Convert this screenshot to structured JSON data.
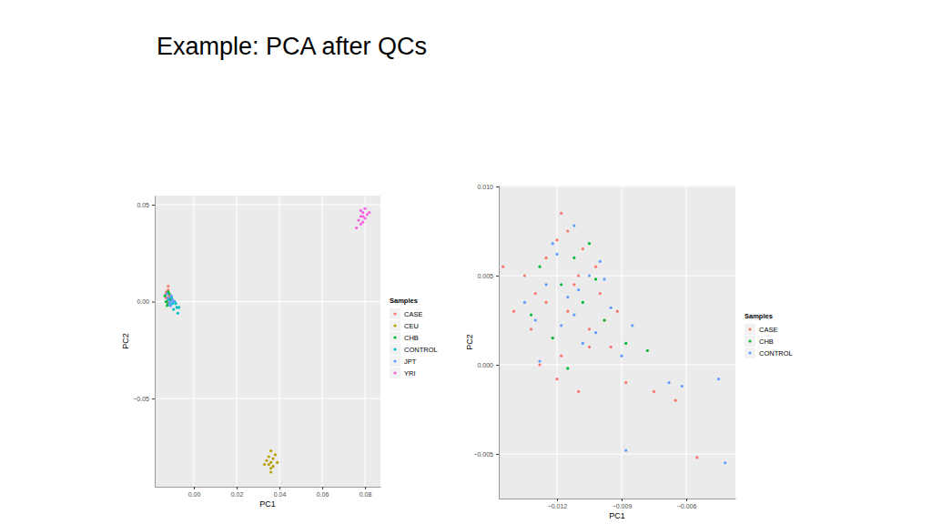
{
  "title": "Example: PCA after QCs",
  "chart_data": [
    {
      "type": "scatter",
      "x_label": "PC1",
      "y_label": "PC2",
      "legend_title": "Samples",
      "legend": "right",
      "grid": true,
      "marker": "circle",
      "xlim": [
        -0.0183,
        0.0872
      ],
      "ylim": [
        -0.0955,
        0.0547
      ],
      "xticks": [
        {
          "value": 0,
          "label": "0.00"
        },
        {
          "value": 0.02,
          "label": "0.02"
        },
        {
          "value": 0.04,
          "label": "0.04"
        },
        {
          "value": 0.06,
          "label": "0.06"
        },
        {
          "value": 0.08,
          "label": "0.08"
        }
      ],
      "yticks": [
        {
          "value": -0.05,
          "label": "−0.05"
        },
        {
          "value": 0,
          "label": "0.00"
        },
        {
          "value": 0.05,
          "label": "0.05"
        }
      ],
      "series": [
        {
          "name": "CASE",
          "color": "#F8766D",
          "x": [
            -0.013,
            -0.012,
            -0.011,
            -0.0125,
            -0.0115,
            -0.013,
            -0.012,
            -0.0105,
            -0.0118,
            -0.0128
          ],
          "values": [
            0.004,
            0.006,
            0.002,
            0.0,
            0.003,
            0.002,
            0.008,
            0.001,
            -0.001,
            0.005
          ]
        },
        {
          "name": "CEU",
          "color": "#B79F00",
          "x": [
            0.035,
            0.036,
            0.037,
            0.034,
            0.038,
            0.036,
            0.035,
            0.037,
            0.036,
            0.033,
            0.039,
            0.036
          ],
          "values": [
            -0.08,
            -0.083,
            -0.085,
            -0.082,
            -0.079,
            -0.088,
            -0.084,
            -0.081,
            -0.086,
            -0.084,
            -0.083,
            -0.077
          ]
        },
        {
          "name": "CHB",
          "color": "#00BA38",
          "x": [
            -0.0135,
            -0.012,
            -0.011,
            -0.0125,
            -0.0105,
            -0.013,
            -0.0115,
            -0.012
          ],
          "values": [
            0.003,
            0.005,
            0.001,
            -0.002,
            0.002,
            0.0,
            0.004,
            -0.001
          ]
        },
        {
          "name": "CONTROL",
          "color": "#00BFC4",
          "x": [
            -0.01,
            -0.009,
            -0.008,
            -0.0095,
            -0.011,
            -0.0085,
            -0.0075,
            -0.012,
            -0.007,
            -0.0105
          ],
          "values": [
            -0.001,
            0.0,
            -0.003,
            -0.004,
            -0.002,
            -0.001,
            -0.006,
            0.001,
            -0.003,
            0.002
          ]
        },
        {
          "name": "JPT",
          "color": "#619CFF",
          "x": [
            -0.012,
            -0.011,
            -0.0105,
            -0.0115,
            -0.01,
            -0.0125,
            -0.011,
            -0.0095
          ],
          "values": [
            0.002,
            0.0,
            0.003,
            -0.001,
            0.001,
            0.004,
            -0.002,
            0.0
          ]
        },
        {
          "name": "YRI",
          "color": "#F564E3",
          "x": [
            0.078,
            0.079,
            0.08,
            0.077,
            0.081,
            0.079,
            0.078,
            0.08,
            0.076,
            0.079,
            0.082,
            0.078
          ],
          "values": [
            0.044,
            0.046,
            0.043,
            0.042,
            0.045,
            0.041,
            0.047,
            0.048,
            0.038,
            0.044,
            0.046,
            0.04
          ]
        }
      ]
    },
    {
      "type": "scatter",
      "x_label": "PC1",
      "y_label": "PC2",
      "legend_title": "Samples",
      "legend": "right",
      "grid": true,
      "marker": "circle",
      "xlim": [
        -0.0147,
        -0.00372
      ],
      "ylim": [
        -0.0075,
        0.01005
      ],
      "xticks": [
        {
          "value": -0.012,
          "label": "−0.012"
        },
        {
          "value": -0.009,
          "label": "−0.009"
        },
        {
          "value": -0.006,
          "label": "−0.006"
        }
      ],
      "yticks": [
        {
          "value": -0.005,
          "label": "−0.005"
        },
        {
          "value": 0,
          "label": "0.000"
        },
        {
          "value": 0.005,
          "label": "0.005"
        },
        {
          "value": 0.01,
          "label": "0.010"
        }
      ],
      "series": [
        {
          "name": "CASE",
          "color": "#F8766D",
          "x": [
            -0.0135,
            -0.013,
            -0.0125,
            -0.012,
            -0.0115,
            -0.011,
            -0.0105,
            -0.01,
            -0.0095,
            -0.014,
            -0.0128,
            -0.0118,
            -0.0108,
            -0.0098,
            -0.0122,
            -0.0112,
            -0.0102,
            -0.0132,
            -0.0092,
            -0.0088,
            -0.0125,
            -0.0115,
            -0.0105,
            -0.012,
            -0.011,
            -0.0075,
            -0.0065,
            -0.0055,
            -0.0118,
            -0.0145
          ],
          "values": [
            0.005,
            0.004,
            0.006,
            0.007,
            0.003,
            0.005,
            0.002,
            0.004,
            0.001,
            0.003,
            0.0,
            0.0085,
            0.0065,
            0.0025,
            0.0015,
            0.0045,
            0.0055,
            0.002,
            0.003,
            -0.001,
            0.0035,
            0.0075,
            0.001,
            -0.0008,
            -0.0015,
            -0.0015,
            -0.002,
            -0.0052,
            0.0005,
            0.0055
          ]
        },
        {
          "name": "CHB",
          "color": "#00BA38",
          "x": [
            -0.0128,
            -0.0118,
            -0.0108,
            -0.0098,
            -0.0122,
            -0.0112,
            -0.0102,
            -0.0132,
            -0.0088,
            -0.0078,
            -0.0115,
            -0.0105
          ],
          "values": [
            0.0055,
            0.0045,
            0.0035,
            0.0025,
            0.0015,
            0.006,
            0.0048,
            0.0028,
            0.0012,
            0.0008,
            -0.0002,
            0.0068
          ]
        },
        {
          "name": "CONTROL",
          "color": "#619CFF",
          "x": [
            -0.0125,
            -0.0115,
            -0.0105,
            -0.0095,
            -0.013,
            -0.012,
            -0.011,
            -0.01,
            -0.0135,
            -0.0118,
            -0.0108,
            -0.0098,
            -0.0122,
            -0.0112,
            -0.0102,
            -0.009,
            -0.0085,
            -0.0068,
            -0.0062,
            -0.0045,
            -0.0042,
            -0.0088,
            -0.0112,
            -0.0128
          ],
          "values": [
            0.0045,
            0.0038,
            0.005,
            0.0032,
            0.0025,
            0.0062,
            0.0042,
            0.0058,
            0.0035,
            0.0022,
            0.0012,
            0.0048,
            0.0068,
            0.0028,
            0.0018,
            0.0005,
            0.0022,
            -0.001,
            -0.0012,
            -0.0008,
            -0.0055,
            -0.0048,
            0.0078,
            0.0002
          ]
        }
      ]
    }
  ]
}
